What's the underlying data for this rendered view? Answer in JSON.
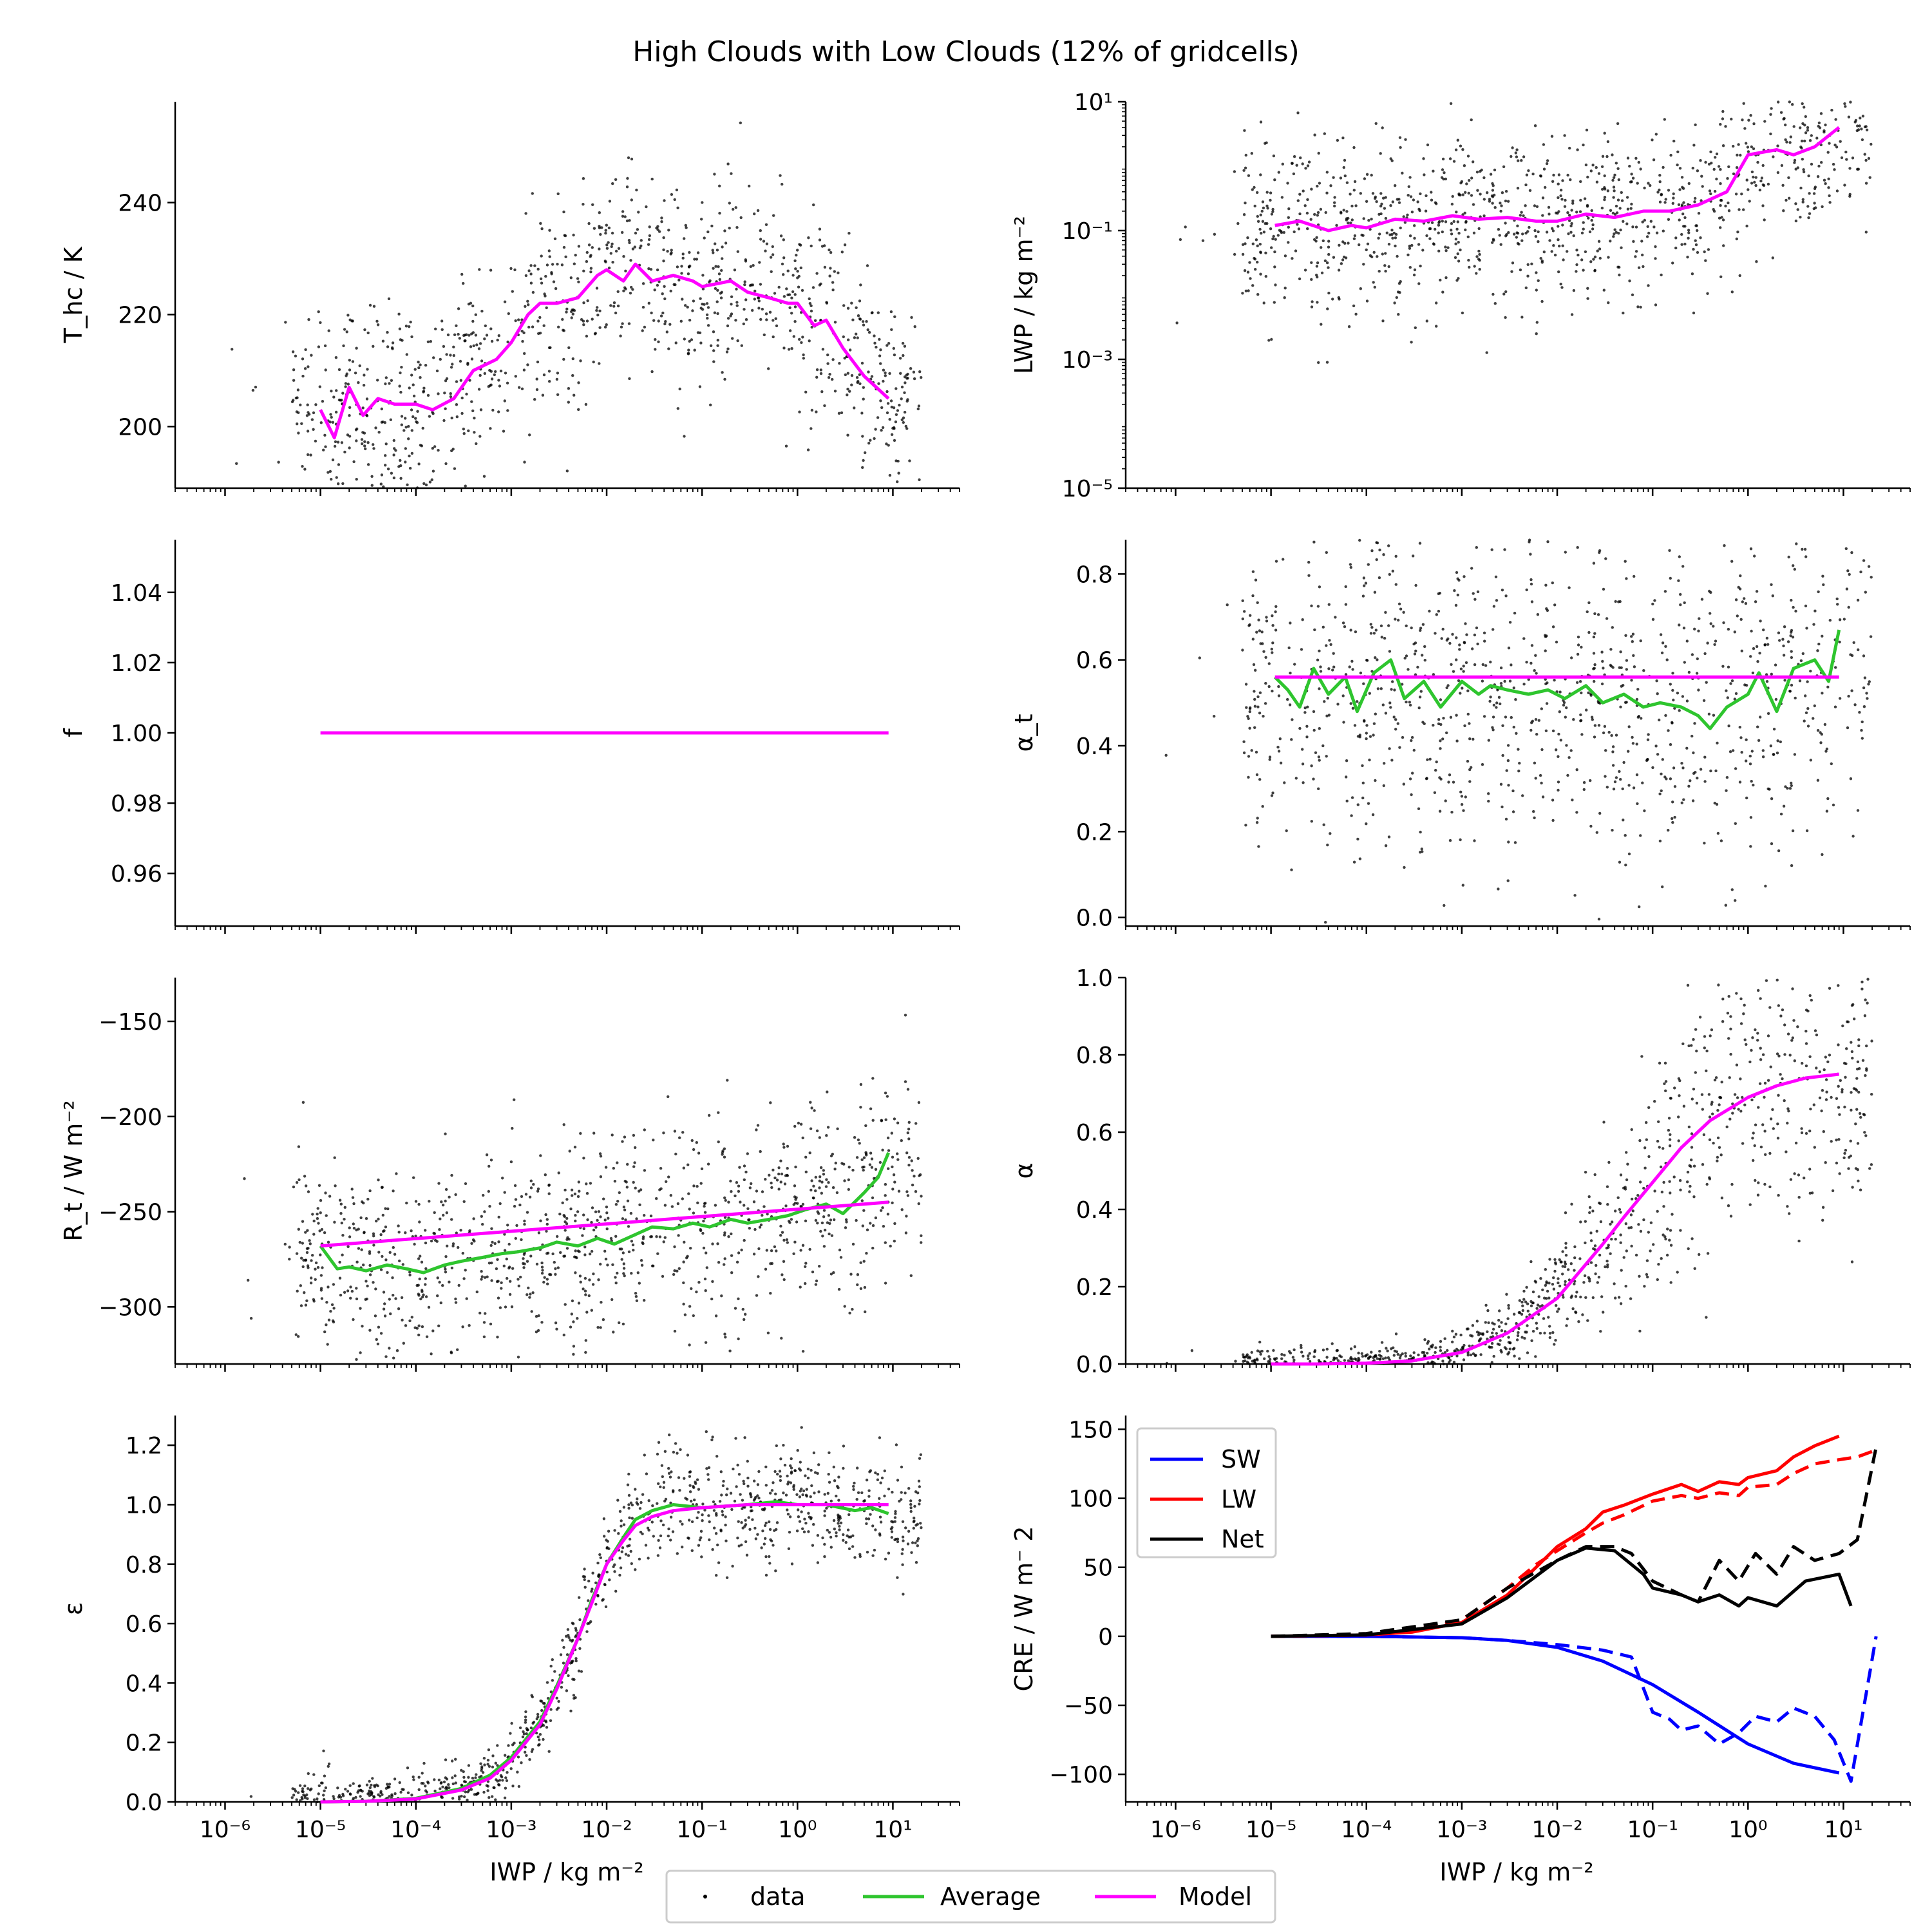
{
  "figure": {
    "title": "High Clouds with Low Clouds (12% of gridcells)",
    "xlabel": "IWP / kg m⁻²",
    "legend": [
      "data",
      "Average",
      "Model"
    ]
  },
  "colors": {
    "data": "#000000",
    "average": "#2ec52e",
    "model": "#ff00ff",
    "sw": "#0000ff",
    "lw": "#ff0000",
    "net": "#000000"
  },
  "chart_data": [
    {
      "type": "scatter",
      "panel": "T_hc",
      "ylabel": "T_hc / K",
      "xscale": "log",
      "xlim": [
        3e-07,
        50
      ],
      "yscale": "linear",
      "ylim": [
        189,
        258
      ],
      "yticks": [
        200,
        220,
        240
      ],
      "scatter_note": "approx. 3000 scattered data points",
      "model": {
        "x": [
          1e-05,
          1.4e-05,
          2e-05,
          2.8e-05,
          4e-05,
          6e-05,
          0.0001,
          0.00015,
          0.00025,
          0.0004,
          0.0007,
          0.001,
          0.0015,
          0.002,
          0.003,
          0.005,
          0.008,
          0.01,
          0.015,
          0.02,
          0.03,
          0.05,
          0.08,
          0.1,
          0.2,
          0.3,
          0.5,
          0.8,
          1,
          1.5,
          2,
          3,
          5,
          9
        ],
        "y": [
          203,
          198,
          207,
          202,
          205,
          204,
          204,
          203,
          205,
          210,
          212,
          215,
          220,
          222,
          222,
          223,
          227,
          228,
          226,
          229,
          226,
          227,
          226,
          225,
          226,
          224,
          223,
          222,
          222,
          218,
          219,
          214,
          209,
          205
        ]
      }
    },
    {
      "type": "scatter",
      "panel": "LWP",
      "ylabel": "LWP / kg m⁻²",
      "xscale": "log",
      "xlim": [
        3e-07,
        50
      ],
      "yscale": "log",
      "ylim": [
        1e-05,
        10
      ],
      "yticks": [
        1e-05,
        0.001,
        0.1,
        10
      ],
      "ytick_labels": [
        "10⁻⁵",
        "10⁻³",
        "10⁻¹",
        "10¹"
      ],
      "model": {
        "x": [
          1.1e-05,
          2e-05,
          4e-05,
          7e-05,
          0.0001,
          0.0002,
          0.0004,
          0.0008,
          0.0015,
          0.003,
          0.006,
          0.01,
          0.02,
          0.04,
          0.08,
          0.15,
          0.3,
          0.6,
          1,
          2,
          3,
          5,
          9
        ],
        "y": [
          0.12,
          0.14,
          0.1,
          0.12,
          0.11,
          0.15,
          0.14,
          0.17,
          0.15,
          0.16,
          0.14,
          0.14,
          0.18,
          0.16,
          0.2,
          0.2,
          0.25,
          0.4,
          1.5,
          1.8,
          1.5,
          2,
          4
        ]
      }
    },
    {
      "type": "line",
      "panel": "f",
      "ylabel": "f",
      "xscale": "log",
      "xlim": [
        3e-07,
        50
      ],
      "yscale": "linear",
      "ylim": [
        0.945,
        1.055
      ],
      "yticks": [
        0.96,
        0.98,
        1.0,
        1.02,
        1.04
      ],
      "ytick_labels": [
        "0.96",
        "0.98",
        "1.00",
        "1.02",
        "1.04"
      ],
      "model": {
        "x": [
          1e-05,
          9
        ],
        "y": [
          1.0,
          1.0
        ]
      }
    },
    {
      "type": "scatter",
      "panel": "alpha_t",
      "ylabel": "α_t",
      "xscale": "log",
      "xlim": [
        3e-07,
        50
      ],
      "yscale": "linear",
      "ylim": [
        -0.02,
        0.88
      ],
      "yticks": [
        0.0,
        0.2,
        0.4,
        0.6,
        0.8
      ],
      "ytick_labels": [
        "0.0",
        "0.2",
        "0.4",
        "0.6",
        "0.8"
      ],
      "model": {
        "x": [
          1.1e-05,
          9
        ],
        "y": [
          0.56,
          0.56
        ]
      },
      "average": {
        "x": [
          1.1e-05,
          1.5e-05,
          2e-05,
          2.8e-05,
          4e-05,
          6e-05,
          8e-05,
          0.00012,
          0.00018,
          0.00025,
          0.0004,
          0.0006,
          0.001,
          0.0015,
          0.002,
          0.003,
          0.005,
          0.008,
          0.012,
          0.02,
          0.03,
          0.05,
          0.08,
          0.12,
          0.2,
          0.3,
          0.4,
          0.6,
          1,
          1.3,
          2,
          3,
          5,
          7,
          9
        ],
        "y": [
          0.56,
          0.53,
          0.49,
          0.58,
          0.52,
          0.56,
          0.48,
          0.57,
          0.6,
          0.51,
          0.55,
          0.49,
          0.55,
          0.52,
          0.54,
          0.53,
          0.52,
          0.53,
          0.51,
          0.54,
          0.5,
          0.52,
          0.49,
          0.5,
          0.49,
          0.47,
          0.44,
          0.49,
          0.52,
          0.57,
          0.48,
          0.58,
          0.6,
          0.55,
          0.67
        ]
      }
    },
    {
      "type": "scatter",
      "panel": "R_t",
      "ylabel": "R_t / W m⁻²",
      "xscale": "log",
      "xlim": [
        3e-07,
        50
      ],
      "yscale": "linear",
      "ylim": [
        -330,
        -127
      ],
      "yticks": [
        -300,
        -250,
        -200,
        -150
      ],
      "ytick_labels": [
        "−300",
        "−250",
        "−200",
        "−150"
      ],
      "model": {
        "x": [
          1e-05,
          9
        ],
        "y": [
          -268,
          -245
        ]
      },
      "average": {
        "x": [
          1e-05,
          1.5e-05,
          2e-05,
          3e-05,
          5e-05,
          8e-05,
          0.00012,
          0.0002,
          0.0003,
          0.0005,
          0.0008,
          0.0012,
          0.002,
          0.003,
          0.005,
          0.008,
          0.012,
          0.02,
          0.03,
          0.05,
          0.08,
          0.12,
          0.2,
          0.3,
          0.5,
          0.8,
          1.2,
          2,
          3,
          5,
          7,
          9
        ],
        "y": [
          -268,
          -280,
          -279,
          -281,
          -278,
          -280,
          -282,
          -278,
          -276,
          -274,
          -272,
          -271,
          -269,
          -266,
          -268,
          -264,
          -267,
          -262,
          -258,
          -259,
          -256,
          -258,
          -254,
          -256,
          -254,
          -252,
          -249,
          -246,
          -251,
          -240,
          -232,
          -219
        ]
      }
    },
    {
      "type": "scatter",
      "panel": "alpha",
      "ylabel": "α",
      "xscale": "log",
      "xlim": [
        3e-07,
        50
      ],
      "yscale": "linear",
      "ylim": [
        0.0,
        1.0
      ],
      "yticks": [
        0.0,
        0.2,
        0.4,
        0.6,
        0.8,
        1.0
      ],
      "ytick_labels": [
        "0.0",
        "0.2",
        "0.4",
        "0.6",
        "0.8",
        "1.0"
      ],
      "model": {
        "x": [
          1e-05,
          3e-05,
          0.0001,
          0.0003,
          0.001,
          0.003,
          0.01,
          0.03,
          0.05,
          0.1,
          0.2,
          0.4,
          1,
          2,
          4,
          9
        ],
        "y": [
          0.0,
          0.0,
          0.002,
          0.008,
          0.03,
          0.08,
          0.17,
          0.31,
          0.38,
          0.47,
          0.56,
          0.63,
          0.69,
          0.72,
          0.74,
          0.75
        ]
      }
    },
    {
      "type": "scatter",
      "panel": "epsilon",
      "ylabel": "ε",
      "xscale": "log",
      "xlim": [
        3e-07,
        50
      ],
      "yscale": "linear",
      "ylim": [
        0.0,
        1.3
      ],
      "yticks": [
        0.0,
        0.2,
        0.4,
        0.6,
        0.8,
        1.0,
        1.2
      ],
      "ytick_labels": [
        "0.0",
        "0.2",
        "0.4",
        "0.6",
        "0.8",
        "1.0",
        "1.2"
      ],
      "model": {
        "x": [
          1e-05,
          3e-05,
          0.0001,
          0.0003,
          0.0006,
          0.001,
          0.002,
          0.003,
          0.005,
          0.007,
          0.01,
          0.015,
          0.02,
          0.03,
          0.05,
          0.1,
          0.3,
          1,
          3,
          9
        ],
        "y": [
          0.0,
          0.002,
          0.01,
          0.04,
          0.08,
          0.14,
          0.26,
          0.38,
          0.55,
          0.67,
          0.8,
          0.88,
          0.93,
          0.96,
          0.98,
          0.99,
          1.0,
          1.0,
          1.0,
          1.0
        ]
      },
      "average": {
        "x": [
          1e-05,
          3e-05,
          0.0001,
          0.0003,
          0.0006,
          0.001,
          0.002,
          0.003,
          0.005,
          0.007,
          0.01,
          0.015,
          0.02,
          0.03,
          0.05,
          0.1,
          0.3,
          0.6,
          1,
          2,
          4,
          6,
          9
        ],
        "y": [
          0.0,
          0.002,
          0.012,
          0.045,
          0.09,
          0.15,
          0.27,
          0.39,
          0.55,
          0.68,
          0.8,
          0.89,
          0.95,
          0.98,
          1.0,
          0.99,
          1.0,
          1.01,
          1.0,
          1.0,
          0.98,
          0.99,
          0.97
        ]
      }
    },
    {
      "type": "line",
      "panel": "CRE",
      "ylabel": "CRE / W m⁻ 2",
      "xscale": "log",
      "xlim": [
        3e-07,
        50
      ],
      "yscale": "linear",
      "ylim": [
        -120,
        160
      ],
      "yticks": [
        -100,
        -50,
        0,
        50,
        100,
        150
      ],
      "ytick_labels": [
        "−100",
        "−50",
        "0",
        "50",
        "100",
        "150"
      ],
      "legend": [
        "SW",
        "LW",
        "Net"
      ],
      "series": [
        {
          "name": "SW",
          "style": "solid",
          "x": [
            1e-05,
            0.0001,
            0.001,
            0.003,
            0.01,
            0.03,
            0.1,
            0.3,
            1,
            3,
            9
          ],
          "y": [
            0,
            0,
            -1,
            -3,
            -8,
            -18,
            -35,
            -55,
            -78,
            -92,
            -99
          ]
        },
        {
          "name": "SW",
          "style": "dashed",
          "x": [
            1e-05,
            0.0001,
            0.001,
            0.003,
            0.01,
            0.03,
            0.06,
            0.1,
            0.15,
            0.2,
            0.3,
            0.5,
            0.8,
            1.2,
            2,
            3,
            5,
            8,
            12,
            22
          ],
          "y": [
            0,
            0,
            -1,
            -3,
            -6,
            -10,
            -15,
            -55,
            -60,
            -68,
            -65,
            -78,
            -70,
            -58,
            -62,
            -52,
            -58,
            -75,
            -105,
            0
          ]
        },
        {
          "name": "LW",
          "style": "solid",
          "x": [
            1e-05,
            0.0001,
            0.0003,
            0.001,
            0.003,
            0.006,
            0.01,
            0.02,
            0.03,
            0.05,
            0.1,
            0.2,
            0.3,
            0.5,
            0.8,
            1,
            2,
            3,
            5,
            9
          ],
          "y": [
            0,
            1,
            3,
            10,
            30,
            50,
            65,
            78,
            90,
            95,
            103,
            110,
            105,
            112,
            110,
            115,
            120,
            130,
            138,
            145
          ]
        },
        {
          "name": "LW",
          "style": "dashed",
          "x": [
            1e-05,
            0.0001,
            0.0003,
            0.001,
            0.003,
            0.006,
            0.01,
            0.02,
            0.03,
            0.05,
            0.1,
            0.2,
            0.3,
            0.5,
            0.8,
            1,
            2,
            3,
            5,
            9,
            14,
            22
          ],
          "y": [
            0,
            1,
            4,
            12,
            35,
            52,
            62,
            75,
            82,
            88,
            98,
            102,
            100,
            104,
            102,
            108,
            110,
            118,
            125,
            128,
            130,
            135
          ]
        },
        {
          "name": "Net",
          "style": "solid",
          "x": [
            1e-05,
            0.0001,
            0.001,
            0.003,
            0.01,
            0.02,
            0.04,
            0.08,
            0.1,
            0.2,
            0.3,
            0.5,
            0.8,
            1,
            2,
            4,
            9,
            12
          ],
          "y": [
            0,
            1,
            9,
            28,
            55,
            64,
            62,
            45,
            35,
            30,
            25,
            30,
            22,
            28,
            22,
            40,
            45,
            22
          ]
        },
        {
          "name": "Net",
          "style": "dashed",
          "x": [
            1e-05,
            0.0001,
            0.001,
            0.003,
            0.01,
            0.02,
            0.04,
            0.06,
            0.1,
            0.2,
            0.3,
            0.5,
            0.8,
            1.2,
            2,
            3,
            5,
            9,
            14,
            22
          ],
          "y": [
            0,
            2,
            12,
            35,
            55,
            65,
            65,
            60,
            40,
            30,
            25,
            55,
            40,
            60,
            45,
            65,
            55,
            60,
            70,
            137
          ]
        }
      ]
    }
  ]
}
